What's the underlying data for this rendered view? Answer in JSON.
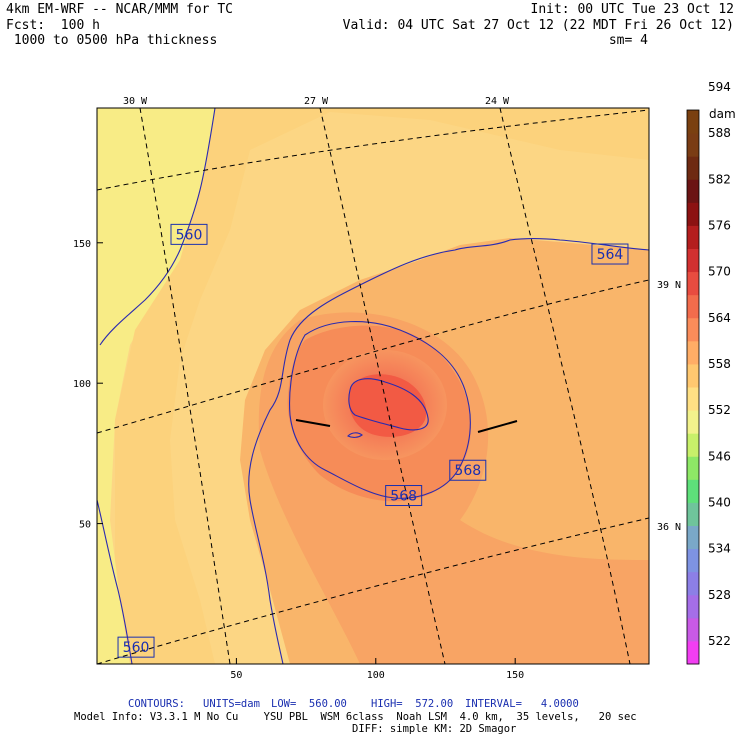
{
  "header": {
    "line1_left": "4km EM-WRF -- NCAR/MMM for TC",
    "line2_left": "Fcst:  100 h",
    "line3_left": " 1000 to 0500 hPa thickness",
    "init": "Init: 00 UTC Tue 23 Oct 12",
    "valid": "Valid: 04 UTC Sat 27 Oct 12 (22 MDT Fri 26 Oct 12)",
    "smooth": "sm= 4"
  },
  "footer": {
    "contours_label": "CONTOURS:",
    "units": "UNITS=dam",
    "low": "LOW=  560.00",
    "high": "HIGH=  572.00",
    "interval": "INTERVAL=   4.0000",
    "model_info": "Model Info: V3.3.1 M No Cu    YSU PBL  WSM 6class  Noah LSM  4.0 km,  35 levels,   20 sec",
    "diff": "DIFF: simple KM: 2D Smagor"
  },
  "chart_data": {
    "type": "heatmap",
    "title": "1000 to 0500 hPa thickness",
    "units": "dam",
    "x_grid_ticks": [
      50,
      100,
      150
    ],
    "y_grid_ticks": [
      50,
      100,
      150
    ],
    "xlim": [
      0,
      198
    ],
    "ylim": [
      0,
      198
    ],
    "longitude_labels": [
      "30 W",
      "27 W",
      "24 W"
    ],
    "latitude_labels": [
      "39 N",
      "36 N"
    ],
    "colorbar": {
      "unit_label": "dam",
      "levels": [
        522,
        528,
        534,
        540,
        546,
        552,
        558,
        564,
        570,
        576,
        582,
        588,
        594
      ],
      "level_labels": [
        "522",
        "528",
        "534",
        "540",
        "546",
        "552",
        "558",
        "564",
        "570",
        "576",
        "582",
        "588",
        "594"
      ],
      "colors": [
        "#f23ef2",
        "#c95ae6",
        "#a56ee8",
        "#8c7fe6",
        "#7e93e2",
        "#7aa8c8",
        "#6fc49b",
        "#5ee07a",
        "#8ee866",
        "#c8f06a",
        "#f2f28c",
        "#ffe084",
        "#ffc870",
        "#ffad66",
        "#fa8c5a",
        "#f26c4c",
        "#e84c40",
        "#d23030",
        "#b41e1e",
        "#8c1212",
        "#6b1414",
        "#6e2a12",
        "#7a3c14",
        "#7a4010"
      ]
    },
    "contour_values": [
      560,
      564,
      568
    ],
    "contour_labels": [
      {
        "text": "560",
        "x": 33,
        "y": 153
      },
      {
        "text": "564",
        "x": 184,
        "y": 146
      },
      {
        "text": "568",
        "x": 133,
        "y": 69
      },
      {
        "text": "568",
        "x": 110,
        "y": 60
      },
      {
        "text": "560",
        "x": 14,
        "y": 6
      }
    ],
    "fields": {
      "low_min": 560.0,
      "high_max": 572.0,
      "center_x": 103,
      "center_y": 91
    }
  }
}
